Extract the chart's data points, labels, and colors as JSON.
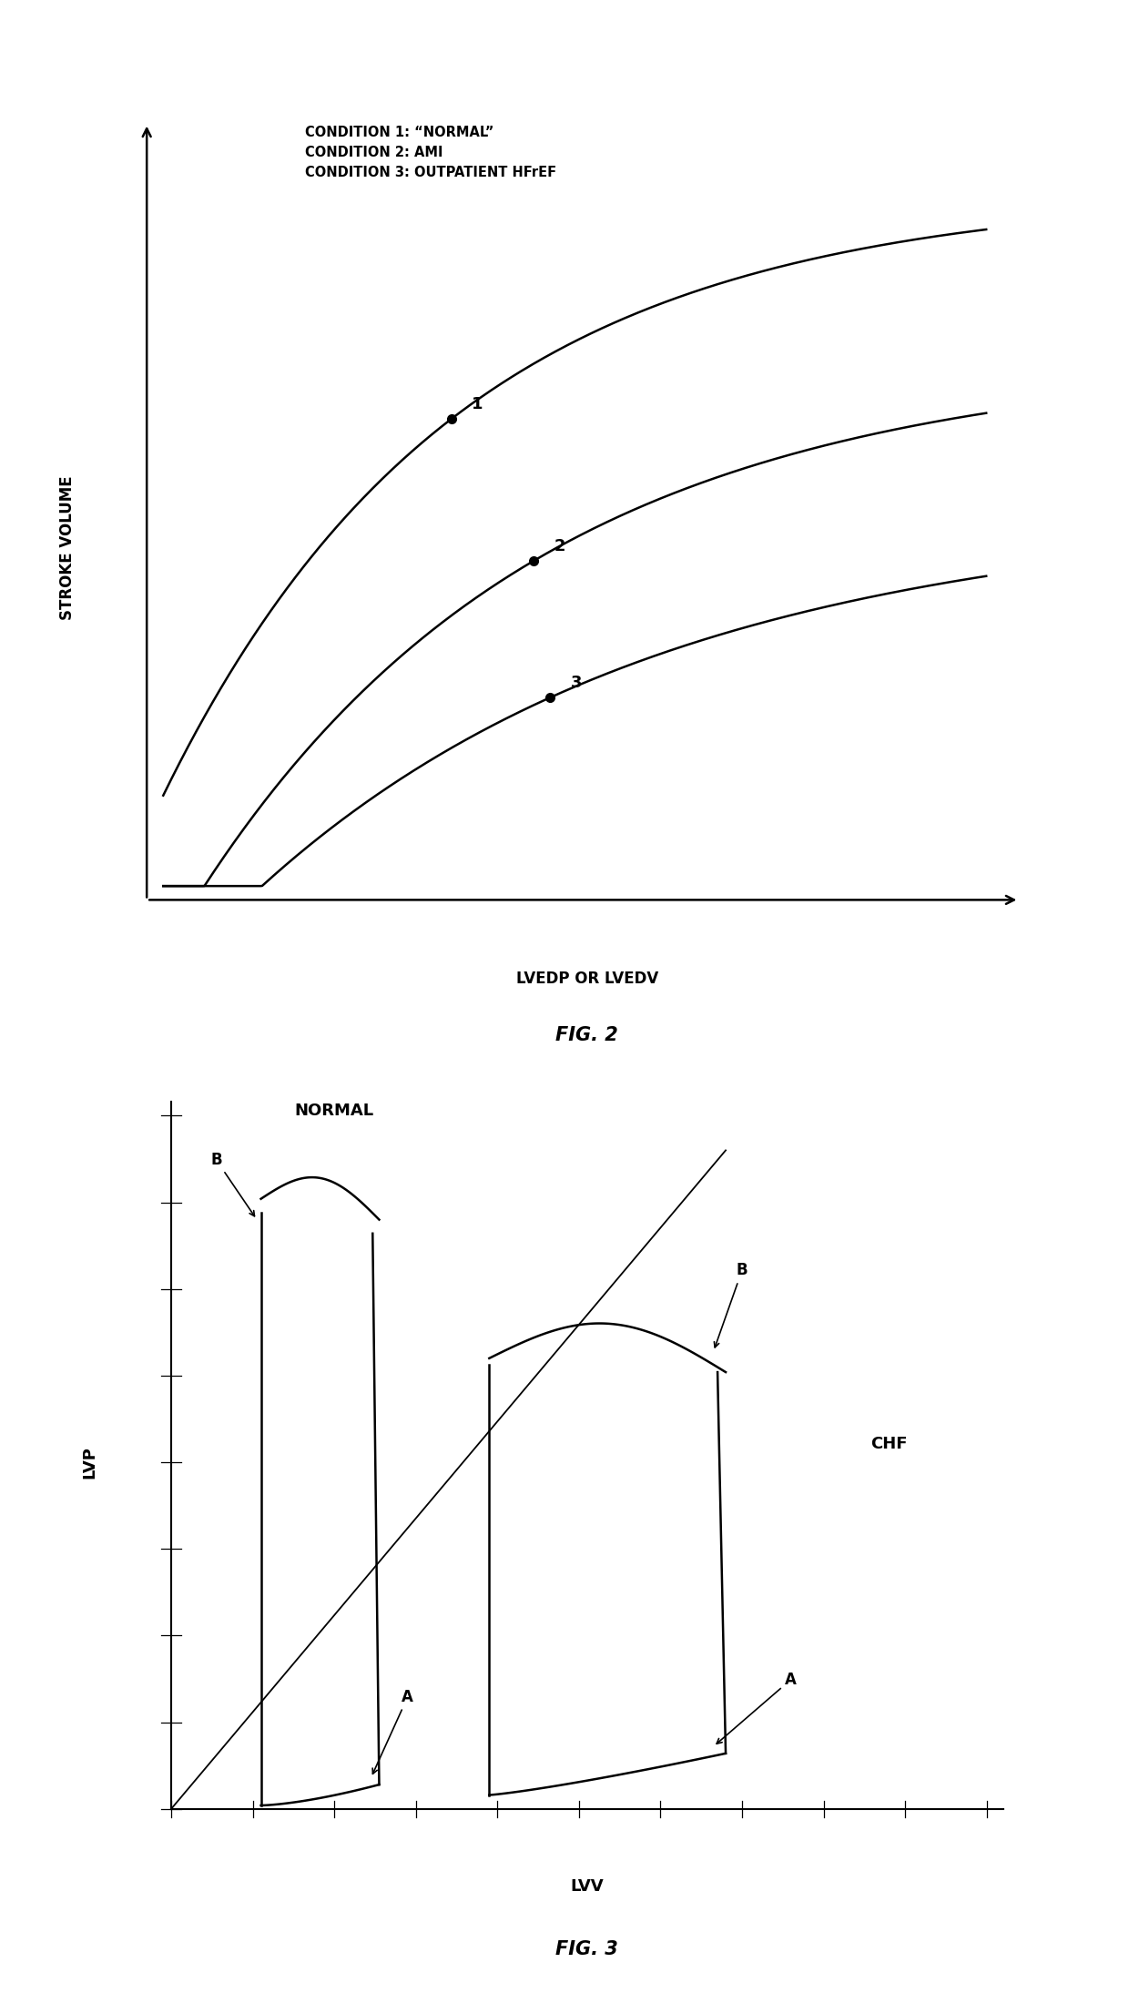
{
  "fig2": {
    "legend_lines": [
      "CONDITION 1: “NORMAL”",
      "CONDITION 2: AMI",
      "CONDITION 3: OUTPATIENT HFrEF"
    ],
    "ylabel": "STROKE VOLUME",
    "xlabel": "LVEDP OR LVEDV",
    "fig_label": "FIG. 2",
    "bg_color": "#ffffff",
    "line_color": "#000000"
  },
  "fig3": {
    "ylabel": "LVP",
    "xlabel": "LVV",
    "fig_label": "FIG. 3",
    "normal_label": "NORMAL",
    "chf_label": "CHF",
    "bg_color": "#ffffff",
    "line_color": "#000000"
  }
}
